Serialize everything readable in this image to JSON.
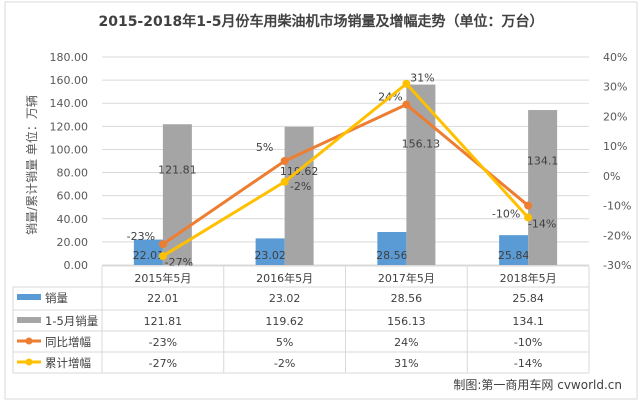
{
  "chart_data": {
    "type": "bar",
    "title": "2015-2018年1-5月份车用柴油机市场销量及增幅走势（单位：万台）",
    "ylabel": "销量/累计销量 单位：万辆",
    "categories": [
      "2015年5月",
      "2016年5月",
      "2017年5月",
      "2018年5月"
    ],
    "ylim": [
      0,
      180
    ],
    "y_ticks": [
      "0.00",
      "20.00",
      "40.00",
      "60.00",
      "80.00",
      "100.00",
      "120.00",
      "140.00",
      "160.00",
      "180.00"
    ],
    "y2lim": [
      -30,
      40
    ],
    "y2_ticks": [
      "-30%",
      "-20%",
      "-10%",
      "0%",
      "10%",
      "20%",
      "30%",
      "40%"
    ],
    "series": [
      {
        "name": "销量",
        "kind": "bar",
        "axis": "left",
        "color": "#5B9BD5",
        "values": [
          22.01,
          23.02,
          28.56,
          25.84
        ],
        "labels": [
          "22.01",
          "23.02",
          "28.56",
          "25.84"
        ]
      },
      {
        "name": "1-5月销量",
        "kind": "bar",
        "axis": "left",
        "color": "#A5A5A5",
        "values": [
          121.81,
          119.62,
          156.13,
          134.1
        ],
        "labels": [
          "121.81",
          "119.62",
          "156.13",
          "134.1"
        ]
      },
      {
        "name": "同比增幅",
        "kind": "line",
        "axis": "right",
        "color": "#ED7D31",
        "values": [
          -23,
          5,
          24,
          -10
        ],
        "labels": [
          "-23%",
          "5%",
          "24%",
          "-10%"
        ]
      },
      {
        "name": "累计增幅",
        "kind": "line",
        "axis": "right",
        "color": "#FFC000",
        "values": [
          -27,
          -2,
          31,
          -14
        ],
        "labels": [
          "-27%",
          "-2%",
          "31%",
          "-14%"
        ]
      }
    ],
    "grid": true,
    "legend": "data-table-below"
  },
  "footer": "制图:第一商用车网 cvworld.cn"
}
